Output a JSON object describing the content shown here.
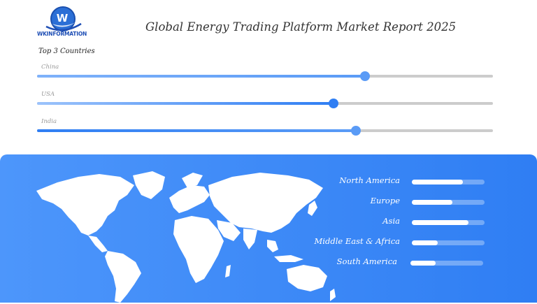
{
  "brand": {
    "name": "WKINFORMATION",
    "mark": "W"
  },
  "title": "Global Energy Trading Platform Market Report 2025",
  "subtitle": "Top 3 Countries",
  "colors": {
    "accent": "#2f7ef3",
    "track": "#cccccc",
    "panel": "#3f89f7"
  },
  "chart_data": [
    {
      "type": "bar",
      "title": "Top 3 Countries",
      "categories": [
        "China",
        "USA",
        "India"
      ],
      "values": [
        72,
        65,
        70
      ],
      "ylim": [
        0,
        100
      ]
    },
    {
      "type": "bar",
      "categories": [
        "North America",
        "Europe",
        "Asia",
        "Middle East & Africa",
        "South America"
      ],
      "values": [
        70,
        56,
        78,
        36,
        35
      ],
      "ylim": [
        0,
        100
      ]
    }
  ]
}
